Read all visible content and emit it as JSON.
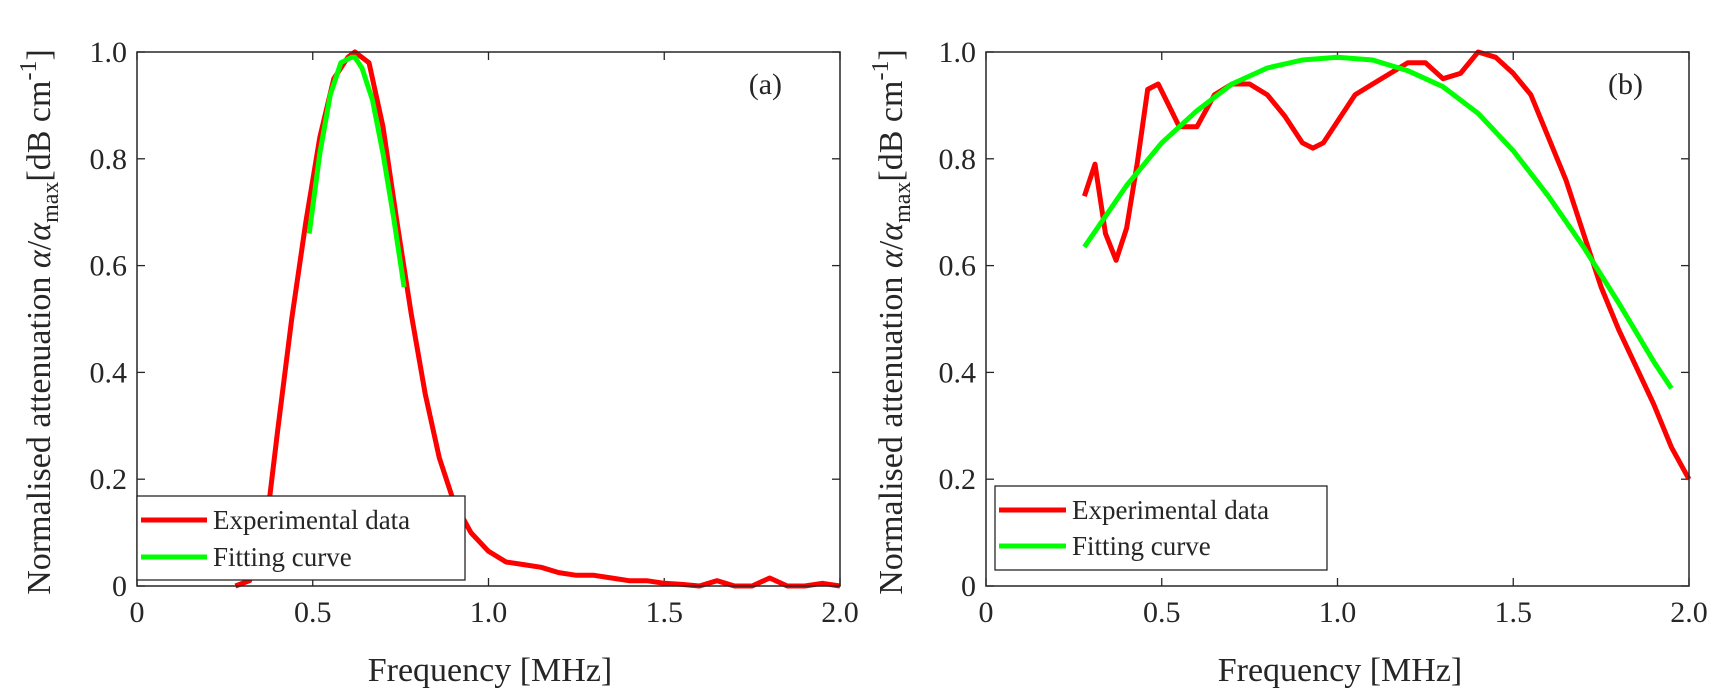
{
  "chart_data": [
    {
      "type": "line",
      "panel_label": "(a)",
      "xlabel": "Frequency [MHz]",
      "ylabel": {
        "prefix": "Normalised attenuation ",
        "alpha": "α",
        "slash": "/",
        "sub": "max",
        "unit_open": "[dB cm",
        "sup": "-1",
        "unit_close": "]"
      },
      "xlim": [
        0,
        2.0
      ],
      "ylim": [
        0,
        1.0
      ],
      "xticks": [
        0,
        0.5,
        1.0,
        1.5,
        2.0
      ],
      "xtick_labels": [
        "0",
        "0.5",
        "1.0",
        "1.5",
        "2.0"
      ],
      "yticks": [
        0,
        0.2,
        0.4,
        0.6,
        0.8,
        1.0
      ],
      "ytick_labels": [
        "0",
        "0.2",
        "0.4",
        "0.6",
        "0.8",
        "1.0"
      ],
      "grid": false,
      "legend_position": "bottom-left",
      "series": [
        {
          "name": "Experimental data",
          "color": "#ff0000",
          "x": [
            0.28,
            0.32,
            0.36,
            0.4,
            0.44,
            0.48,
            0.52,
            0.56,
            0.6,
            0.62,
            0.66,
            0.7,
            0.74,
            0.78,
            0.82,
            0.86,
            0.9,
            0.95,
            1.0,
            1.05,
            1.1,
            1.15,
            1.2,
            1.25,
            1.3,
            1.35,
            1.4,
            1.45,
            1.5,
            1.55,
            1.6,
            1.65,
            1.7,
            1.75,
            1.8,
            1.85,
            1.9,
            1.95,
            2.0
          ],
          "y": [
            0.0,
            0.01,
            0.07,
            0.29,
            0.5,
            0.68,
            0.84,
            0.95,
            0.99,
            1.0,
            0.98,
            0.86,
            0.68,
            0.51,
            0.36,
            0.24,
            0.16,
            0.1,
            0.065,
            0.045,
            0.04,
            0.035,
            0.025,
            0.02,
            0.02,
            0.015,
            0.01,
            0.01,
            0.005,
            0.003,
            0.0,
            0.01,
            0.0,
            0.0,
            0.015,
            0.0,
            0.0,
            0.005,
            0.0
          ]
        },
        {
          "name": "Fitting curve",
          "color": "#00ff00",
          "x": [
            0.49,
            0.52,
            0.55,
            0.58,
            0.61,
            0.62,
            0.64,
            0.67,
            0.7,
            0.73,
            0.76
          ],
          "y": [
            0.66,
            0.81,
            0.92,
            0.98,
            0.99,
            0.99,
            0.97,
            0.91,
            0.81,
            0.69,
            0.56
          ]
        }
      ]
    },
    {
      "type": "line",
      "panel_label": "(b)",
      "xlabel": "Frequency [MHz]",
      "ylabel": {
        "prefix": "Normalised attenuation ",
        "alpha": "α",
        "slash": "/",
        "sub": "max",
        "unit_open": "[dB cm",
        "sup": "-1",
        "unit_close": "]"
      },
      "xlim": [
        0,
        2.0
      ],
      "ylim": [
        0,
        1.0
      ],
      "xticks": [
        0,
        0.5,
        1.0,
        1.5,
        2.0
      ],
      "xtick_labels": [
        "0",
        "0.5",
        "1.0",
        "1.5",
        "2.0"
      ],
      "yticks": [
        0,
        0.2,
        0.4,
        0.6,
        0.8,
        1.0
      ],
      "ytick_labels": [
        "0",
        "0.2",
        "0.4",
        "0.6",
        "0.8",
        "1.0"
      ],
      "grid": false,
      "legend_position": "bottom-left",
      "series": [
        {
          "name": "Experimental data",
          "color": "#ff0000",
          "x": [
            0.28,
            0.31,
            0.34,
            0.37,
            0.4,
            0.43,
            0.46,
            0.49,
            0.52,
            0.55,
            0.6,
            0.65,
            0.7,
            0.75,
            0.8,
            0.85,
            0.9,
            0.93,
            0.96,
            1.0,
            1.05,
            1.1,
            1.15,
            1.2,
            1.25,
            1.3,
            1.35,
            1.4,
            1.45,
            1.5,
            1.55,
            1.6,
            1.65,
            1.7,
            1.75,
            1.8,
            1.85,
            1.9,
            1.95,
            2.0
          ],
          "y": [
            0.73,
            0.79,
            0.66,
            0.61,
            0.67,
            0.79,
            0.93,
            0.94,
            0.9,
            0.86,
            0.86,
            0.92,
            0.94,
            0.94,
            0.92,
            0.88,
            0.83,
            0.82,
            0.83,
            0.87,
            0.92,
            0.94,
            0.96,
            0.98,
            0.98,
            0.95,
            0.96,
            1.0,
            0.99,
            0.96,
            0.92,
            0.84,
            0.76,
            0.66,
            0.56,
            0.48,
            0.41,
            0.34,
            0.26,
            0.2
          ]
        },
        {
          "name": "Fitting curve",
          "color": "#00ff00",
          "x": [
            0.28,
            0.4,
            0.5,
            0.6,
            0.7,
            0.8,
            0.9,
            1.0,
            1.1,
            1.2,
            1.3,
            1.4,
            1.5,
            1.6,
            1.7,
            1.8,
            1.9,
            1.95
          ],
          "y": [
            0.635,
            0.75,
            0.83,
            0.89,
            0.94,
            0.97,
            0.985,
            0.99,
            0.985,
            0.965,
            0.935,
            0.885,
            0.815,
            0.73,
            0.635,
            0.53,
            0.42,
            0.37
          ]
        }
      ]
    }
  ]
}
